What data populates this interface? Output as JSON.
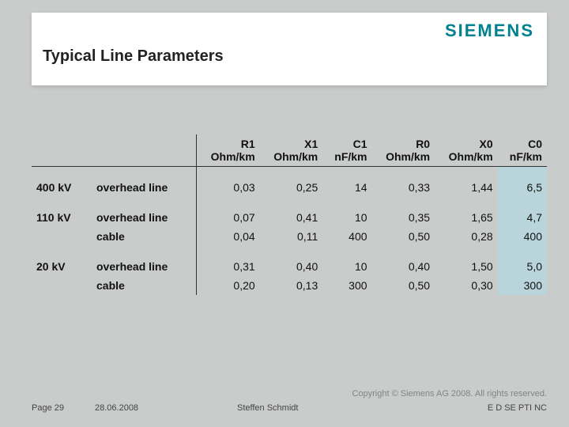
{
  "brand": "SIEMENS",
  "brand_color": "#00838f",
  "slide_background": "#c9cccb",
  "header_background": "#ffffff",
  "c0_highlight_color": "#b9d5db",
  "title": "Typical Line Parameters",
  "title_fontsize": 20,
  "table": {
    "columns": [
      {
        "key": "voltage",
        "line1": "",
        "line2": ""
      },
      {
        "key": "type",
        "line1": "",
        "line2": ""
      },
      {
        "key": "R1",
        "line1": "R1",
        "line2": "Ohm/km"
      },
      {
        "key": "X1",
        "line1": "X1",
        "line2": "Ohm/km"
      },
      {
        "key": "C1",
        "line1": "C1",
        "line2": "nF/km"
      },
      {
        "key": "R0",
        "line1": "R0",
        "line2": "Ohm/km"
      },
      {
        "key": "X0",
        "line1": "X0",
        "line2": "Ohm/km"
      },
      {
        "key": "C0",
        "line1": "C0",
        "line2": "nF/km"
      }
    ],
    "groups": [
      {
        "voltage": "400 kV",
        "rows": [
          {
            "type": "overhead line",
            "R1": "0,03",
            "X1": "0,25",
            "C1": "14",
            "R0": "0,33",
            "X0": "1,44",
            "C0": "6,5"
          }
        ]
      },
      {
        "voltage": "110 kV",
        "rows": [
          {
            "type": "overhead line",
            "R1": "0,07",
            "X1": "0,41",
            "C1": "10",
            "R0": "0,35",
            "X0": "1,65",
            "C0": "4,7"
          },
          {
            "type": "cable",
            "R1": "0,04",
            "X1": "0,11",
            "C1": "400",
            "R0": "0,50",
            "X0": "0,28",
            "C0": "400"
          }
        ]
      },
      {
        "voltage": "20 kV",
        "rows": [
          {
            "type": "overhead line",
            "R1": "0,31",
            "X1": "0,40",
            "C1": "10",
            "R0": "0,40",
            "X0": "1,50",
            "C0": "5,0"
          },
          {
            "type": "cable",
            "R1": "0,20",
            "X1": "0,13",
            "C1": "300",
            "R0": "0,50",
            "X0": "0,30",
            "C0": "300"
          }
        ]
      }
    ]
  },
  "footer": {
    "copyright": "Copyright © Siemens AG 2008. All rights reserved.",
    "page": "Page 29",
    "date": "28.06.2008",
    "author": "Steffen Schmidt",
    "department": "E D SE PTI NC"
  }
}
